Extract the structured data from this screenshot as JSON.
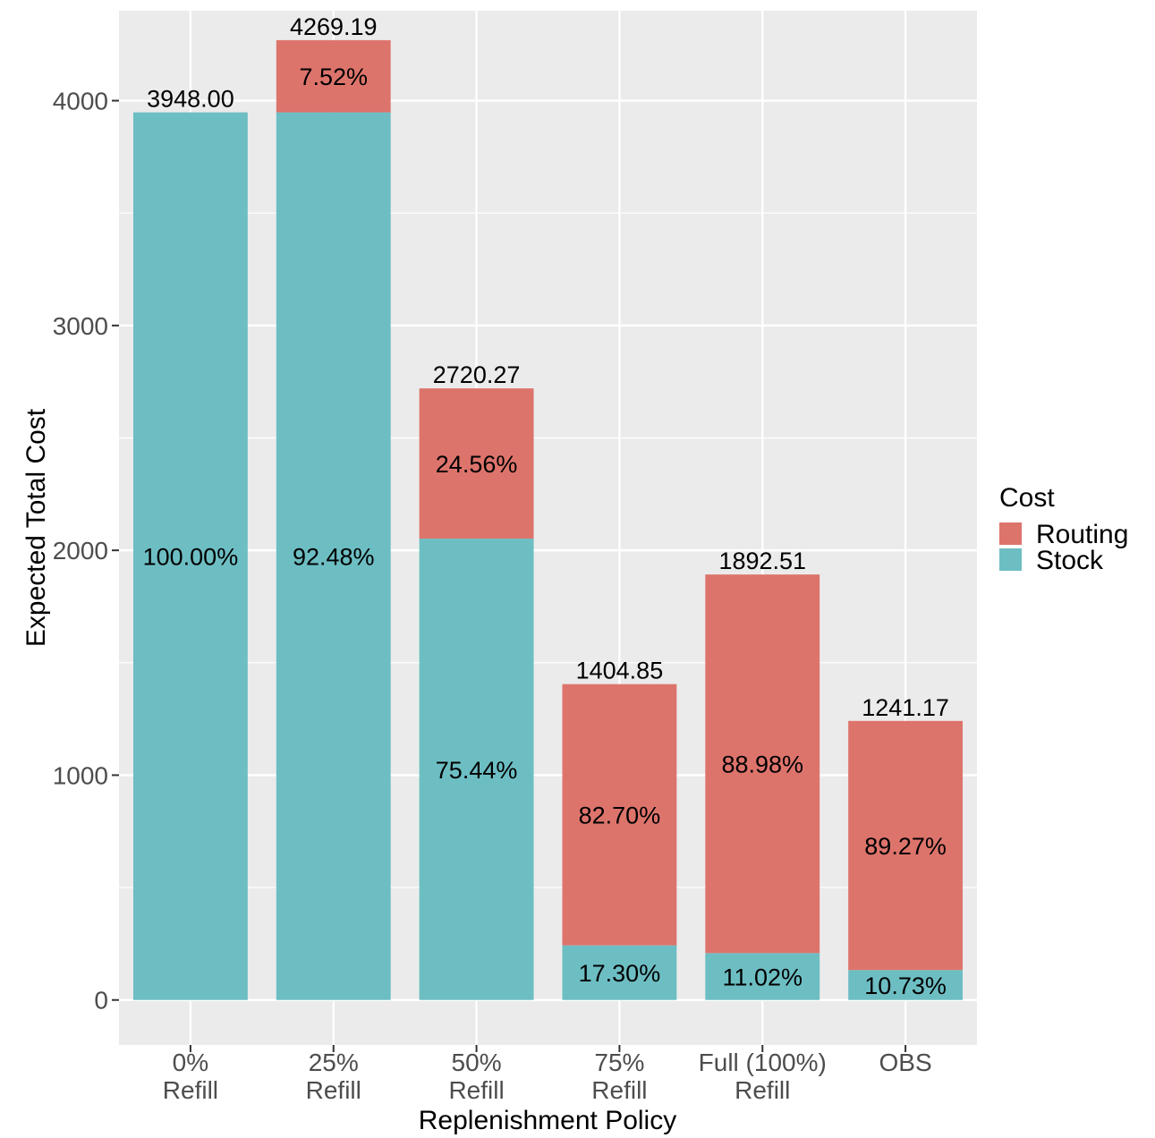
{
  "chart_data": {
    "type": "bar",
    "stacked": true,
    "xlabel": "Replenishment Policy",
    "ylabel": "Expected Total Cost",
    "ylim": [
      -200,
      4400
    ],
    "yticks": [
      0,
      1000,
      2000,
      3000,
      4000
    ],
    "categories": [
      [
        "0%",
        "Refill"
      ],
      [
        "25%",
        "Refill"
      ],
      [
        "50%",
        "Refill"
      ],
      [
        "75%",
        "Refill"
      ],
      [
        "Full (100%)",
        "Refill"
      ],
      [
        "OBS"
      ]
    ],
    "totals": [
      3948.0,
      4269.19,
      2720.27,
      1404.85,
      1892.51,
      1241.17
    ],
    "total_labels": [
      "3948.00",
      "4269.19",
      "2720.27",
      "1404.85",
      "1892.51",
      "1241.17"
    ],
    "series": [
      {
        "name": "Stock",
        "color": "#6dbec3",
        "values": [
          3948.0,
          3948.15,
          2052.17,
          243.04,
          208.55,
          133.18
        ],
        "pct_labels": [
          "100.00%",
          "92.48%",
          "75.44%",
          "17.30%",
          "11.02%",
          "10.73%"
        ]
      },
      {
        "name": "Routing",
        "color": "#dd746c",
        "values": [
          0,
          321.04,
          668.1,
          1161.81,
          1683.96,
          1107.99
        ],
        "pct_labels": [
          "",
          "7.52%",
          "24.56%",
          "82.70%",
          "88.98%",
          "89.27%"
        ]
      }
    ],
    "grid": true,
    "legend": {
      "title": "Cost",
      "placement": "right",
      "entries": [
        {
          "label": "Routing",
          "color": "#dd746c"
        },
        {
          "label": "Stock",
          "color": "#6dbec3"
        }
      ]
    }
  }
}
